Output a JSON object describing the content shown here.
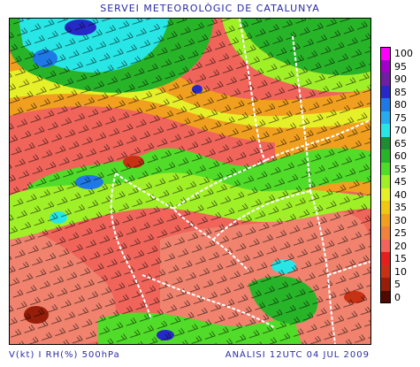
{
  "header": {
    "title": "SERVEI METEOROLÒGIC DE CATALUNYA"
  },
  "footer": {
    "variables": "V(kt) I RH(%) 500hPa",
    "analysis": "ANÀLISI 12UTC 04 JUL 2009"
  },
  "legend": {
    "items": [
      {
        "label": "100",
        "color": "#ff00ff"
      },
      {
        "label": "95",
        "color": "#a000c8"
      },
      {
        "label": "90",
        "color": "#6e1ea0"
      },
      {
        "label": "85",
        "color": "#2828c8"
      },
      {
        "label": "80",
        "color": "#1e78e6"
      },
      {
        "label": "75",
        "color": "#28aaf0"
      },
      {
        "label": "70",
        "color": "#28e6e6"
      },
      {
        "label": "65",
        "color": "#1e8c32"
      },
      {
        "label": "60",
        "color": "#28b428"
      },
      {
        "label": "55",
        "color": "#50dc28"
      },
      {
        "label": "45",
        "color": "#a0f028"
      },
      {
        "label": "40",
        "color": "#e6f028"
      },
      {
        "label": "35",
        "color": "#f0c814"
      },
      {
        "label": "30",
        "color": "#f0a01e"
      },
      {
        "label": "25",
        "color": "#f0823c"
      },
      {
        "label": "20",
        "color": "#f0645a"
      },
      {
        "label": "15",
        "color": "#e61e1e"
      },
      {
        "label": "10",
        "color": "#c83214"
      },
      {
        "label": "5",
        "color": "#961e0a"
      },
      {
        "label": "0",
        "color": "#500a00"
      }
    ]
  }
}
